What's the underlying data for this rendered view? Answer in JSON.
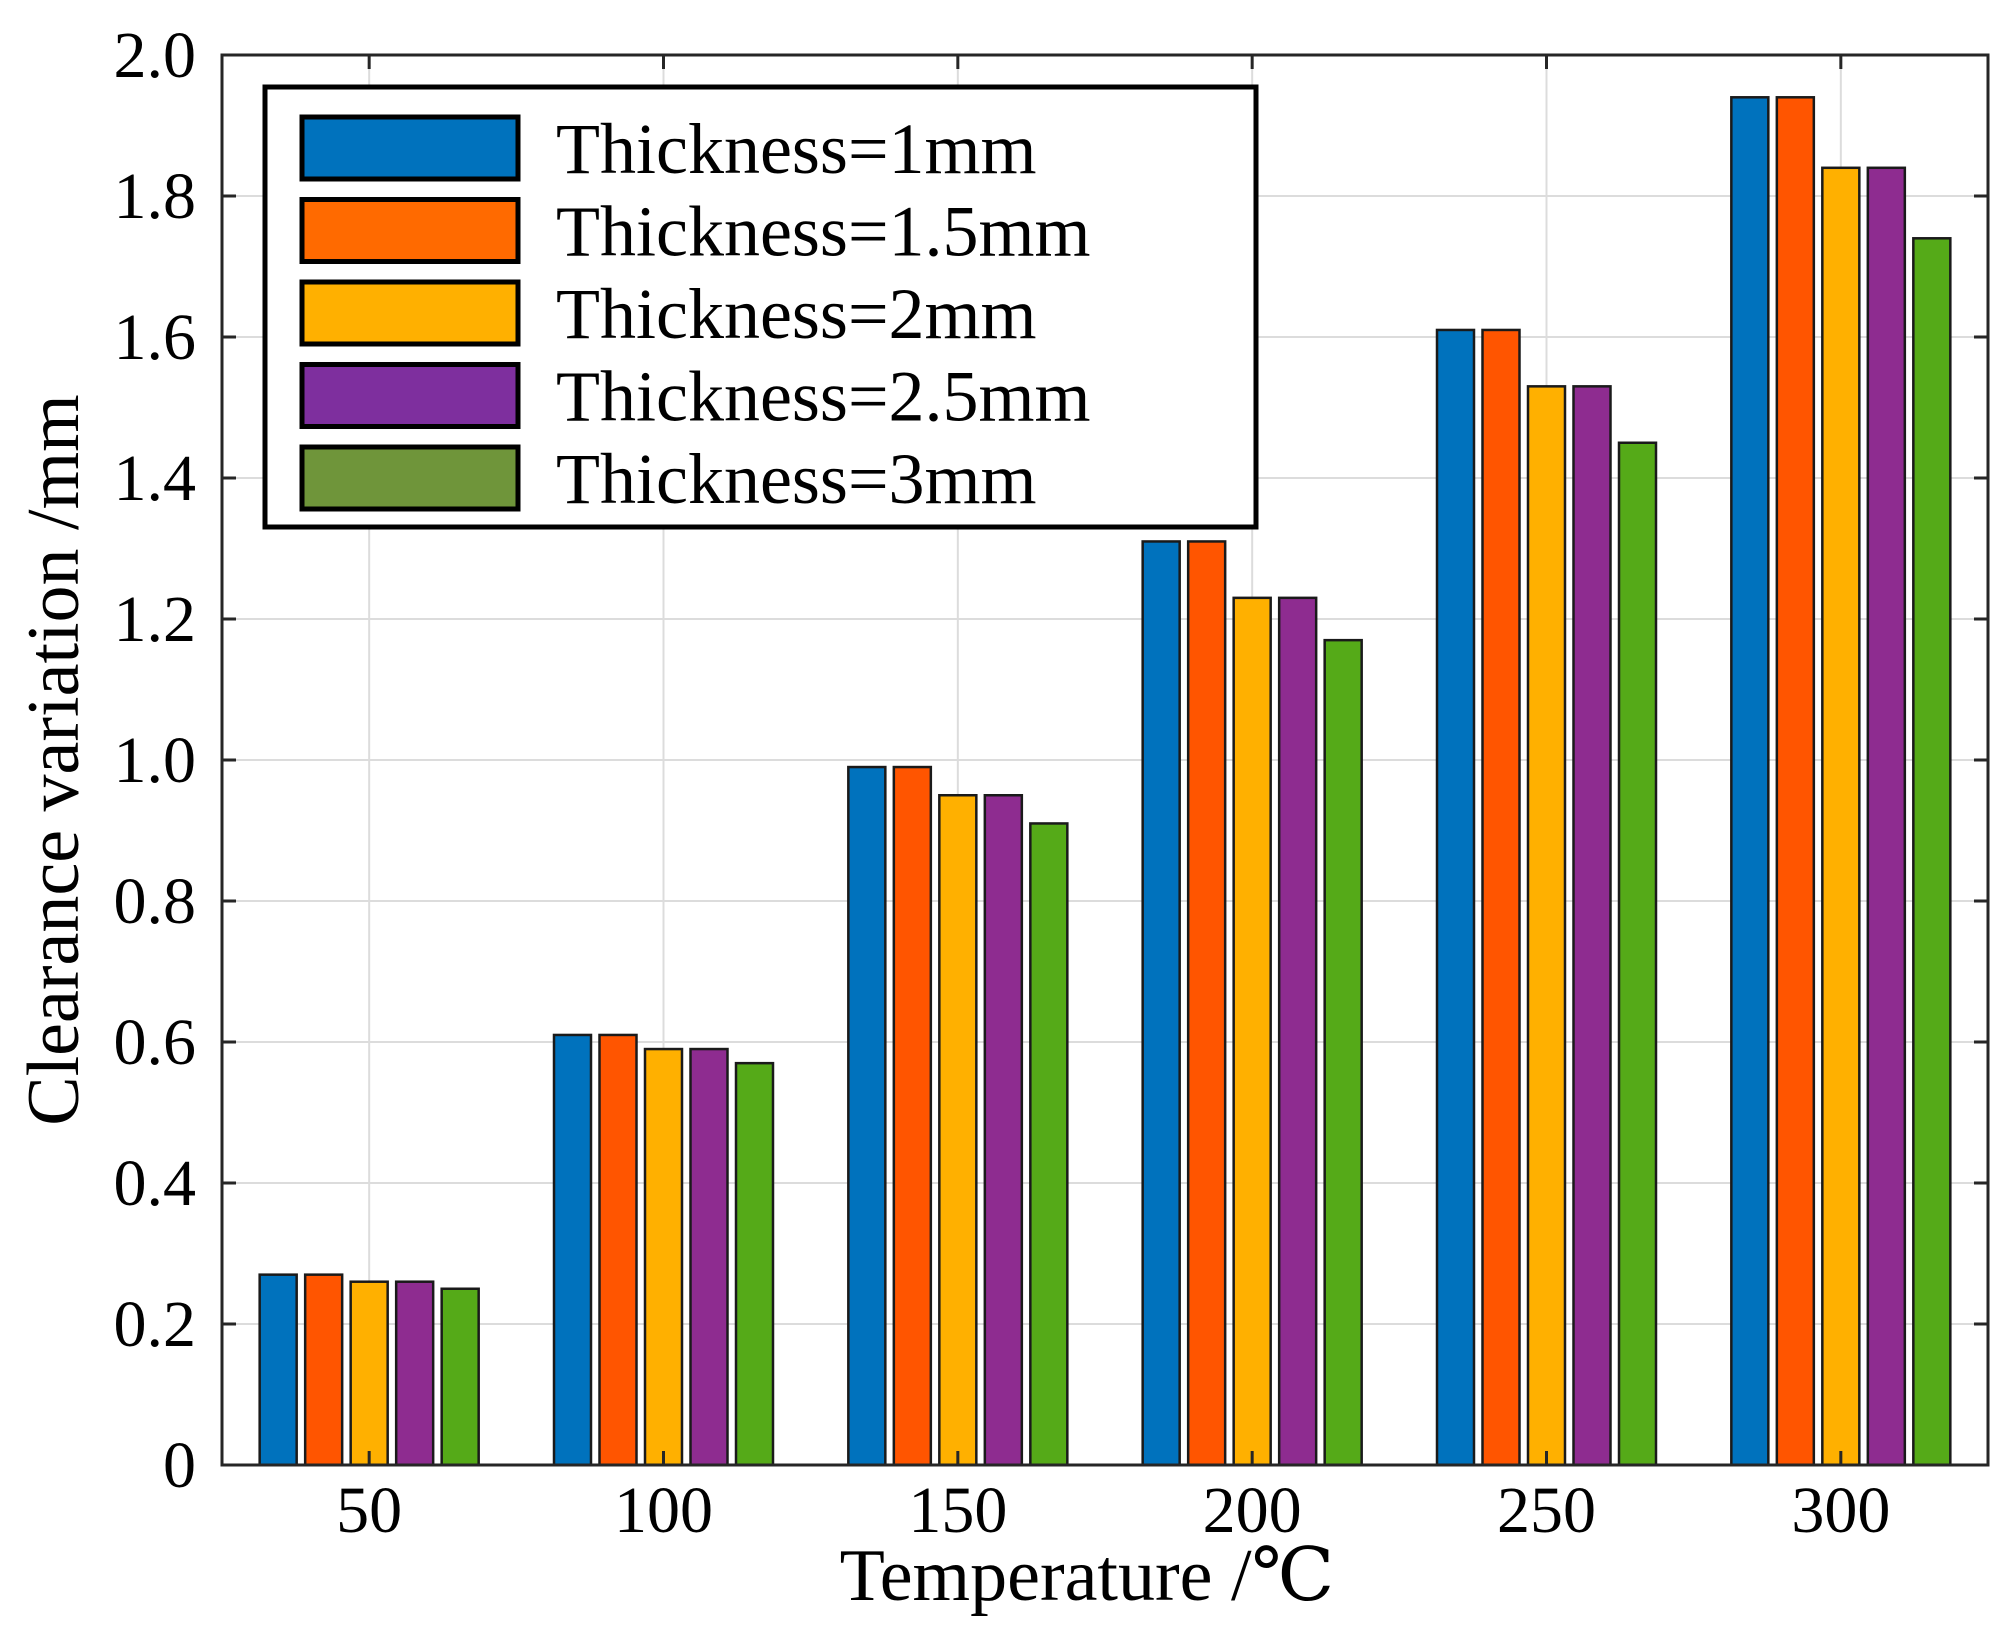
{
  "chart_data": {
    "type": "bar",
    "title": "",
    "xlabel": "Temperature /℃",
    "ylabel": "Clearance variation /mm",
    "categories": [
      "50",
      "100",
      "150",
      "200",
      "250",
      "300"
    ],
    "ylim": [
      0,
      2.0
    ],
    "yticks": [
      0,
      0.2,
      0.4,
      0.6,
      0.8,
      1.0,
      1.2,
      1.4,
      1.6,
      1.8,
      2.0
    ],
    "ytick_labels": [
      "0",
      "0.2",
      "0.4",
      "0.6",
      "0.8",
      "1.0",
      "1.2",
      "1.4",
      "1.6",
      "1.8",
      "2.0"
    ],
    "grid": true,
    "legend_position": "top-left",
    "series": [
      {
        "name": "Thickness=1mm",
        "color": "#0072BD",
        "legend_color": "#0072BD",
        "values": [
          0.27,
          0.61,
          0.99,
          1.31,
          1.61,
          1.94
        ]
      },
      {
        "name": "Thickness=1.5mm",
        "color": "#FF5500",
        "legend_color": "#FF6A00",
        "values": [
          0.27,
          0.61,
          0.99,
          1.31,
          1.61,
          1.94
        ]
      },
      {
        "name": "Thickness=2mm",
        "color": "#FFB000",
        "legend_color": "#FFB000",
        "values": [
          0.26,
          0.59,
          0.95,
          1.23,
          1.53,
          1.84
        ]
      },
      {
        "name": "Thickness=2.5mm",
        "color": "#8E2C90",
        "legend_color": "#7E2F9E",
        "values": [
          0.26,
          0.59,
          0.95,
          1.23,
          1.53,
          1.84
        ]
      },
      {
        "name": "Thickness=3mm",
        "color": "#55AA18",
        "legend_color": "#6F953A",
        "values": [
          0.25,
          0.57,
          0.91,
          1.17,
          1.45,
          1.74
        ]
      }
    ]
  }
}
